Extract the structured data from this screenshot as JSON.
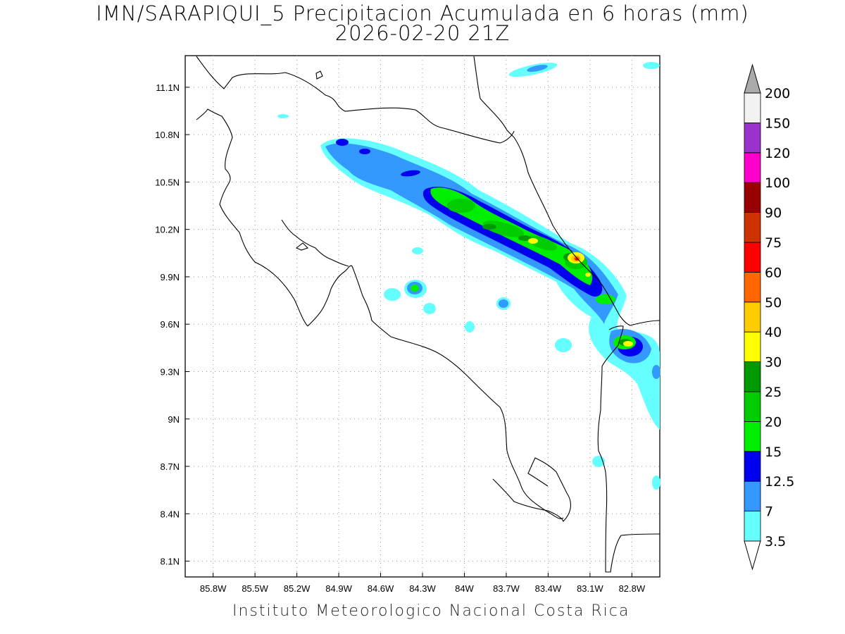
{
  "title": "IMN/SARAPIQUI_5 Precipitacion Acumulada en 6 horas (mm)",
  "subtitle": "2026-02-20 21Z",
  "footer": "Instituto Meteorologico Nacional Costa Rica",
  "map": {
    "lon_range": [
      -86.0,
      -82.6
    ],
    "lat_range": [
      8.0,
      11.3
    ],
    "lon_ticks": [
      "85.8W",
      "85.5W",
      "85.2W",
      "84.9W",
      "84.6W",
      "84.3W",
      "84W",
      "83.7W",
      "83.4W",
      "83.1W",
      "82.8W"
    ],
    "lat_ticks": [
      "11.1N",
      "10.8N",
      "10.5N",
      "10.2N",
      "9.9N",
      "9.6N",
      "9.3N",
      "9N",
      "8.7N",
      "8.4N",
      "8.1N"
    ],
    "grid": "dotted"
  },
  "colorbar": {
    "levels": [
      "3.5",
      "7",
      "12.5",
      "15",
      "20",
      "25",
      "30",
      "40",
      "50",
      "60",
      "75",
      "90",
      "100",
      "120",
      "150",
      "200"
    ],
    "colors": [
      "#66ffff",
      "#3399ff",
      "#0000ee",
      "#00ee00",
      "#00cc00",
      "#009900",
      "#ffff00",
      "#ffcc00",
      "#ff6600",
      "#ff0000",
      "#cc3300",
      "#990000",
      "#ff00cc",
      "#9933cc",
      "#f2f2f2",
      "#aaaaaa"
    ]
  }
}
